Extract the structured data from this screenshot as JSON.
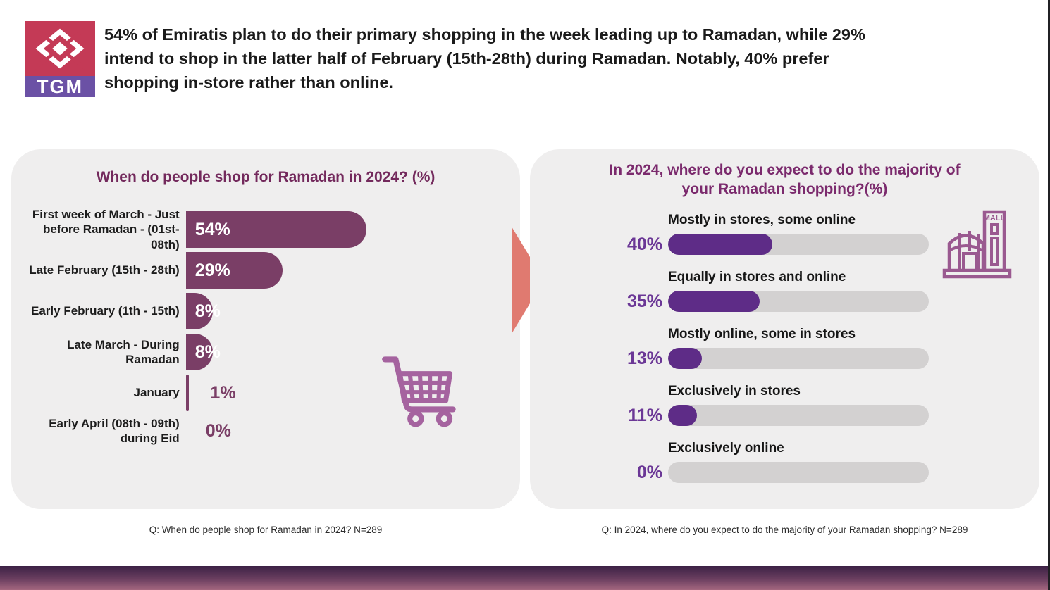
{
  "logo": {
    "text": "TGM"
  },
  "header": {
    "line1": "54% of Emiratis plan to do their primary shopping in the week leading up to Ramadan, while 29%",
    "line2": "intend to shop in the latter half of February (15th-28th) during Ramadan. Notably, 40% prefer",
    "line3": "shopping in-store rather than online."
  },
  "left_panel": {
    "title": "When do people shop for Ramadan in 2024? (%)",
    "footer": "Q: When do people shop for Ramadan in 2024? N=289",
    "rows": [
      {
        "label": "First week of March - Just before Ramadan - (01st- 08th)",
        "value": 54,
        "value_label": "54%"
      },
      {
        "label": "Late February (15th - 28th)",
        "value": 29,
        "value_label": "29%"
      },
      {
        "label": "Early February (1th - 15th)",
        "value": 8,
        "value_label": "8%"
      },
      {
        "label": "Late March - During Ramadan",
        "value": 8,
        "value_label": "8%"
      },
      {
        "label": "January",
        "value": 1,
        "value_label": "1%"
      },
      {
        "label": "Early April (08th - 09th) during Eid",
        "value": 0,
        "value_label": "0%"
      }
    ]
  },
  "right_panel": {
    "title_line1": "In 2024, where do you expect to do the majority of",
    "title_line2": "your Ramadan shopping?(%)",
    "footer": "Q: In 2024, where do you expect to do the majority of your Ramadan shopping? N=289",
    "rows": [
      {
        "label": "Mostly in stores, some online",
        "value": 40,
        "value_label": "40%"
      },
      {
        "label": "Equally in stores and online",
        "value": 35,
        "value_label": "35%"
      },
      {
        "label": "Mostly online, some in stores",
        "value": 13,
        "value_label": "13%"
      },
      {
        "label": "Exclusively in stores",
        "value": 11,
        "value_label": "11%"
      },
      {
        "label": "Exclusively online",
        "value": 0,
        "value_label": "0%"
      }
    ]
  },
  "icons": {
    "mall_label": "MALL"
  },
  "colors": {
    "plum_bar": "#7a3e66",
    "violet_fill": "#5e2c87",
    "track_gray": "#d3d1d1",
    "panel_gray": "#efeeee",
    "coral_arrow": "#e07a70",
    "logo_red": "#c43a56",
    "logo_purple": "#6b51a5",
    "cart_icon": "#a5639f",
    "mall_icon": "#9a5990"
  },
  "chart_data": [
    {
      "type": "bar",
      "orientation": "horizontal",
      "title": "When do people shop for Ramadan in 2024? (%)",
      "categories": [
        "First week of March - Just before Ramadan - (01st- 08th)",
        "Late February (15th - 28th)",
        "Early February (1th - 15th)",
        "Late March - During Ramadan",
        "January",
        "Early April (08th - 09th) during Eid"
      ],
      "values": [
        54,
        29,
        8,
        8,
        1,
        0
      ],
      "unit": "%",
      "sample_note": "Q: When do people shop for Ramadan in 2024? N=289",
      "bar_color": "#7a3e66",
      "value_labels_inside": true
    },
    {
      "type": "bar",
      "orientation": "horizontal",
      "title": "In 2024, where do you expect to do the majority of your Ramadan shopping?(%)",
      "categories": [
        "Mostly in stores, some online",
        "Equally in stores and online",
        "Mostly online, some in stores",
        "Exclusively in stores",
        "Exclusively online"
      ],
      "values": [
        40,
        35,
        13,
        11,
        0
      ],
      "unit": "%",
      "xlim": [
        0,
        100
      ],
      "sample_note": "Q: In 2024, where do you expect to do the majority of your Ramadan shopping? N=289",
      "bar_color": "#5e2c87",
      "track_color": "#d3d1d1"
    }
  ]
}
